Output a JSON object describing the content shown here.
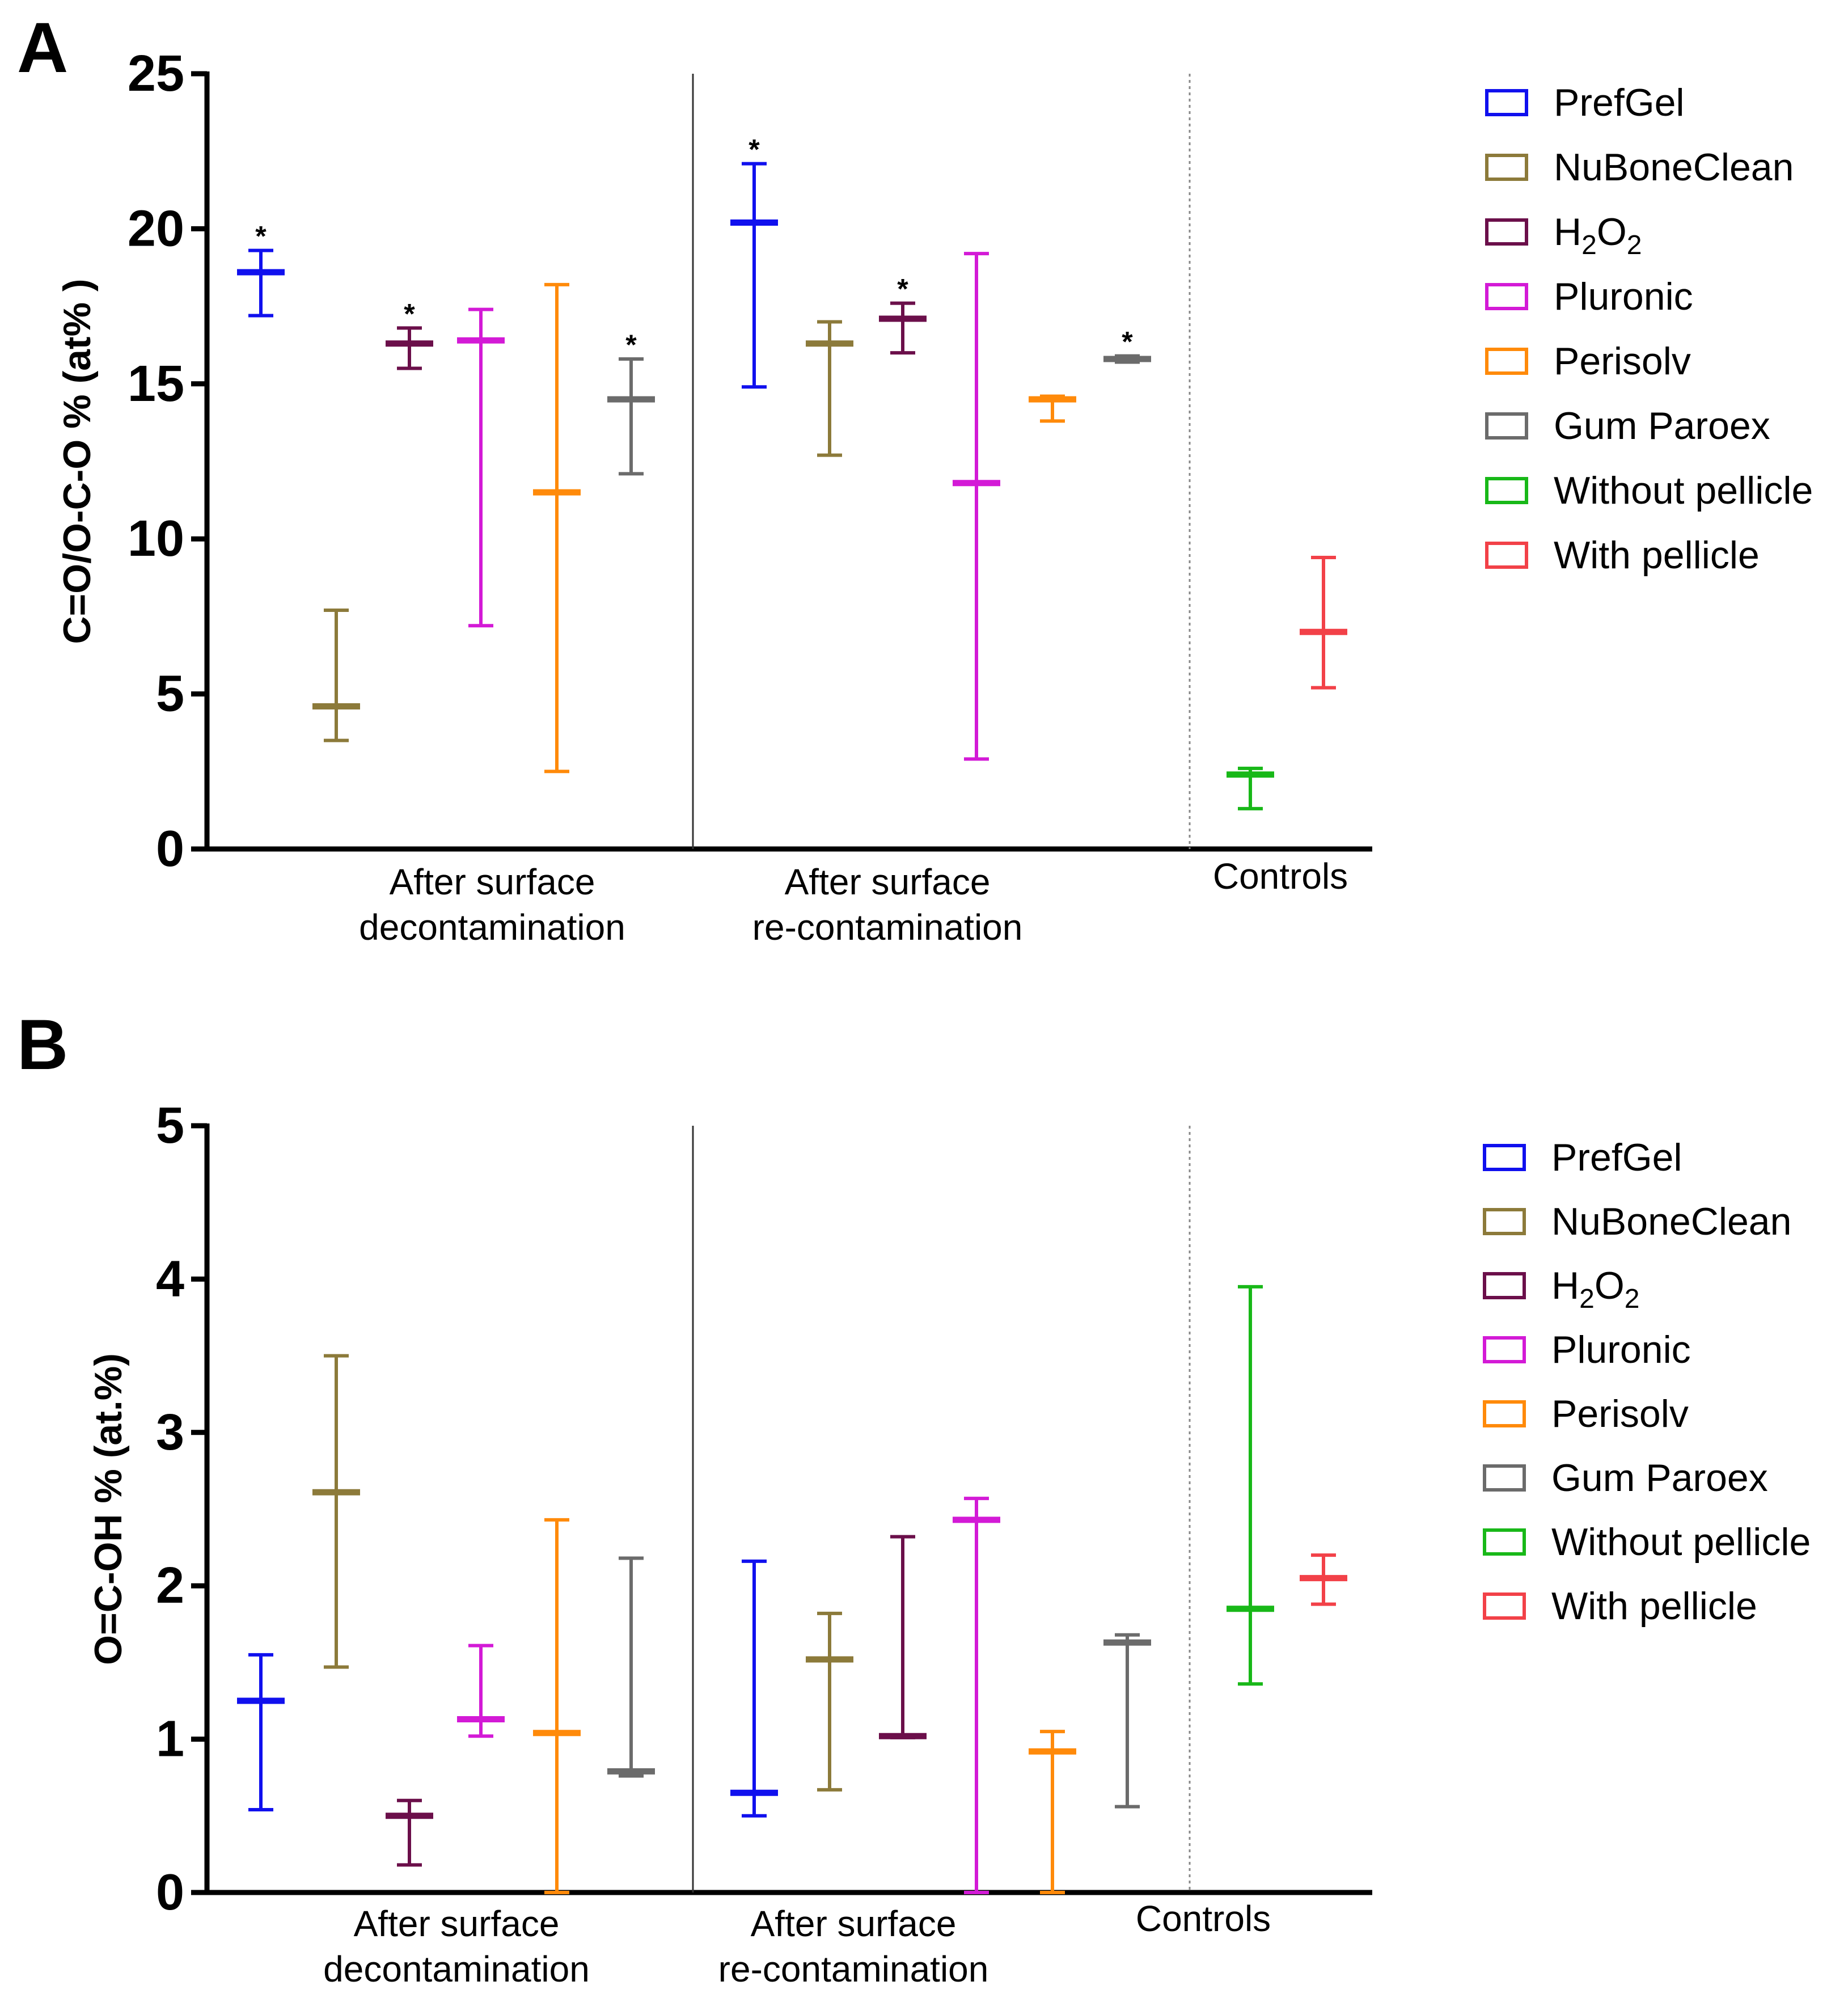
{
  "colors": {
    "PrefGel": "#1010ee",
    "NuBoneClean": "#8c7a3a",
    "H2O2": "#6b0f4a",
    "Pluronic": "#d31ad6",
    "Perisolv": "#ff8a0a",
    "Gum Paroex": "#6b6b6b",
    "Without pellicle": "#18b818",
    "With pellicle": "#f24148"
  },
  "chart_data": [
    {
      "panel": "A",
      "type": "error-bar",
      "ylabel": "C=O/O-C-O % (at% )",
      "ylim": [
        0,
        25
      ],
      "yticks": [
        "0",
        "5",
        "10",
        "15",
        "20",
        "25"
      ],
      "groups": [
        {
          "label": [
            "After surface",
            "decontamination"
          ]
        },
        {
          "label": [
            "After surface",
            "re-contamination"
          ]
        },
        {
          "label": [
            "Controls"
          ]
        }
      ],
      "legend": [
        {
          "key": "PrefGel",
          "text": "PrefGel"
        },
        {
          "key": "NuBoneClean",
          "text": "NuBoneClean"
        },
        {
          "key": "H2O2",
          "text": "H",
          "sub": "2",
          "text2": "O",
          "sub2": "2"
        },
        {
          "key": "Pluronic",
          "text": "Pluronic"
        },
        {
          "key": "Perisolv",
          "text": "Perisolv"
        },
        {
          "key": "Gum Paroex",
          "text": "Gum Paroex"
        },
        {
          "key": "Without pellicle",
          "text": "Without pellicle"
        },
        {
          "key": "With pellicle",
          "text": "With pellicle"
        }
      ],
      "points": [
        {
          "group": 0,
          "series": "PrefGel",
          "mean": 18.6,
          "low": 17.2,
          "high": 19.3,
          "star": true
        },
        {
          "group": 0,
          "series": "NuBoneClean",
          "mean": 4.6,
          "low": 3.5,
          "high": 7.7,
          "star": false
        },
        {
          "group": 0,
          "series": "H2O2",
          "mean": 16.3,
          "low": 15.5,
          "high": 16.8,
          "star": true
        },
        {
          "group": 0,
          "series": "Pluronic",
          "mean": 16.4,
          "low": 7.2,
          "high": 17.4,
          "star": false
        },
        {
          "group": 0,
          "series": "Perisolv",
          "mean": 11.5,
          "low": 2.5,
          "high": 18.2,
          "star": false
        },
        {
          "group": 0,
          "series": "Gum Paroex",
          "mean": 14.5,
          "low": 12.1,
          "high": 15.8,
          "star": true
        },
        {
          "group": 1,
          "series": "PrefGel",
          "mean": 20.2,
          "low": 14.9,
          "high": 22.1,
          "star": true
        },
        {
          "group": 1,
          "series": "NuBoneClean",
          "mean": 16.3,
          "low": 12.7,
          "high": 17.0,
          "star": false
        },
        {
          "group": 1,
          "series": "H2O2",
          "mean": 17.1,
          "low": 16.0,
          "high": 17.6,
          "star": true
        },
        {
          "group": 1,
          "series": "Pluronic",
          "mean": 11.8,
          "low": 2.9,
          "high": 19.2,
          "star": false
        },
        {
          "group": 1,
          "series": "Perisolv",
          "mean": 14.5,
          "low": 13.8,
          "high": 14.6,
          "star": false
        },
        {
          "group": 1,
          "series": "Gum Paroex",
          "mean": 15.8,
          "low": 15.7,
          "high": 15.9,
          "star": true
        },
        {
          "group": 2,
          "series": "Without pellicle",
          "mean": 2.4,
          "low": 1.3,
          "high": 2.6,
          "star": false
        },
        {
          "group": 2,
          "series": "With pellicle",
          "mean": 7.0,
          "low": 5.2,
          "high": 9.4,
          "star": false
        }
      ]
    },
    {
      "panel": "B",
      "type": "error-bar",
      "ylabel": "O=C-OH % (at.%)",
      "ylim": [
        0,
        5
      ],
      "yticks": [
        "0",
        "1",
        "2",
        "3",
        "4",
        "5"
      ],
      "groups": [
        {
          "label": [
            "After surface",
            "decontamination"
          ]
        },
        {
          "label": [
            "After surface",
            "re-contamination"
          ]
        },
        {
          "label": [
            "Controls"
          ]
        }
      ],
      "legend": [
        {
          "key": "PrefGel",
          "text": "PrefGel"
        },
        {
          "key": "NuBoneClean",
          "text": "NuBoneClean"
        },
        {
          "key": "H2O2",
          "text": "H",
          "sub": "2",
          "text2": "O",
          "sub2": "2"
        },
        {
          "key": "Pluronic",
          "text": "Pluronic"
        },
        {
          "key": "Perisolv",
          "text": "Perisolv"
        },
        {
          "key": "Gum Paroex",
          "text": "Gum Paroex"
        },
        {
          "key": "Without pellicle",
          "text": "Without pellicle"
        },
        {
          "key": "With pellicle",
          "text": "With pellicle"
        }
      ],
      "points": [
        {
          "group": 0,
          "series": "PrefGel",
          "mean": 1.25,
          "low": 0.54,
          "high": 1.55,
          "star": false
        },
        {
          "group": 0,
          "series": "NuBoneClean",
          "mean": 2.61,
          "low": 1.47,
          "high": 3.5,
          "star": false
        },
        {
          "group": 0,
          "series": "H2O2",
          "mean": 0.5,
          "low": 0.18,
          "high": 0.6,
          "star": false
        },
        {
          "group": 0,
          "series": "Pluronic",
          "mean": 1.13,
          "low": 1.02,
          "high": 1.61,
          "star": false
        },
        {
          "group": 0,
          "series": "Perisolv",
          "mean": 1.04,
          "low": 0.0,
          "high": 2.43,
          "star": false
        },
        {
          "group": 0,
          "series": "Gum Paroex",
          "mean": 0.79,
          "low": 0.76,
          "high": 2.18,
          "star": false
        },
        {
          "group": 1,
          "series": "PrefGel",
          "mean": 0.65,
          "low": 0.5,
          "high": 2.16,
          "star": false
        },
        {
          "group": 1,
          "series": "NuBoneClean",
          "mean": 1.52,
          "low": 0.67,
          "high": 1.82,
          "star": false
        },
        {
          "group": 1,
          "series": "H2O2",
          "mean": 1.02,
          "low": 1.01,
          "high": 2.32,
          "star": false
        },
        {
          "group": 1,
          "series": "Pluronic",
          "mean": 2.43,
          "low": 0.0,
          "high": 2.57,
          "star": false
        },
        {
          "group": 1,
          "series": "Perisolv",
          "mean": 0.92,
          "low": 0.0,
          "high": 1.05,
          "star": false
        },
        {
          "group": 1,
          "series": "Gum Paroex",
          "mean": 1.63,
          "low": 0.56,
          "high": 1.68,
          "star": false
        },
        {
          "group": 2,
          "series": "Without pellicle",
          "mean": 1.85,
          "low": 1.36,
          "high": 3.95,
          "star": false
        },
        {
          "group": 2,
          "series": "With pellicle",
          "mean": 2.05,
          "low": 1.88,
          "high": 2.2,
          "star": false
        }
      ]
    }
  ],
  "panels": {
    "a": {
      "letter": "A"
    },
    "b": {
      "letter": "B"
    }
  }
}
